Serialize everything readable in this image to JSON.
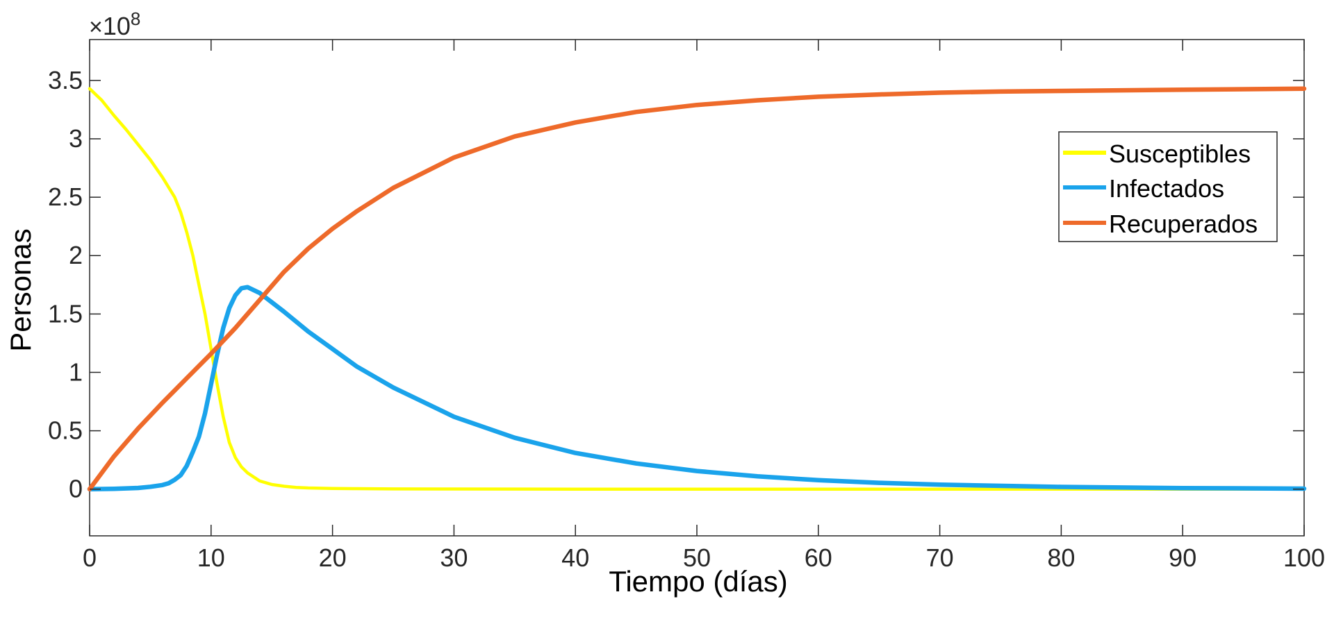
{
  "chart_data": {
    "type": "line",
    "xlabel": "Tiempo (días)",
    "ylabel": "Personas",
    "xlim": [
      0,
      100
    ],
    "ylim": [
      -0.4,
      3.85
    ],
    "y_multiplier_base": "10",
    "y_multiplier_exp": "8",
    "x_ticks": [
      0,
      10,
      20,
      30,
      40,
      50,
      60,
      70,
      80,
      90,
      100
    ],
    "x_tick_labels": [
      "0",
      "10",
      "20",
      "30",
      "40",
      "50",
      "60",
      "70",
      "80",
      "90",
      "100"
    ],
    "y_ticks": [
      0,
      0.5,
      1,
      1.5,
      2,
      2.5,
      3,
      3.5
    ],
    "y_tick_labels": [
      "0",
      "0.5",
      "1",
      "1.5",
      "2",
      "2.5",
      "3",
      "3.5"
    ],
    "grid": false,
    "legend_position": "top-right",
    "series": [
      {
        "name": "Susceptibles",
        "color": "#FFFF00",
        "x": [
          0,
          1,
          2,
          3,
          4,
          5,
          6,
          7,
          7.5,
          8,
          8.5,
          9,
          9.5,
          10,
          10.5,
          11,
          11.5,
          12,
          12.5,
          13,
          14,
          15,
          16,
          17,
          18,
          20,
          22,
          25,
          30,
          40,
          50,
          60,
          70,
          80,
          90,
          100
        ],
        "y": [
          3.43,
          3.33,
          3.2,
          3.08,
          2.95,
          2.82,
          2.67,
          2.5,
          2.37,
          2.2,
          2.0,
          1.75,
          1.5,
          1.2,
          0.9,
          0.62,
          0.4,
          0.27,
          0.19,
          0.14,
          0.07,
          0.04,
          0.025,
          0.015,
          0.01,
          0.006,
          0.004,
          0.002,
          0.001,
          0,
          0,
          0,
          0,
          0,
          0,
          0
        ]
      },
      {
        "name": "Infectados",
        "color": "#1AA3EB",
        "x": [
          0,
          2,
          4,
          5,
          6,
          6.5,
          7,
          7.5,
          8,
          8.5,
          9,
          9.5,
          10,
          10.5,
          11,
          11.5,
          12,
          12.5,
          13,
          14,
          15,
          16,
          18,
          20,
          22,
          25,
          30,
          35,
          40,
          45,
          50,
          55,
          60,
          65,
          70,
          80,
          90,
          100
        ],
        "y": [
          0,
          0.003,
          0.01,
          0.02,
          0.035,
          0.05,
          0.08,
          0.12,
          0.2,
          0.32,
          0.45,
          0.65,
          0.9,
          1.15,
          1.38,
          1.55,
          1.66,
          1.72,
          1.73,
          1.68,
          1.6,
          1.52,
          1.35,
          1.2,
          1.05,
          0.87,
          0.62,
          0.44,
          0.31,
          0.22,
          0.155,
          0.11,
          0.077,
          0.054,
          0.038,
          0.019,
          0.009,
          0.004
        ]
      },
      {
        "name": "Recuperados",
        "color": "#EE6A2A",
        "x": [
          0,
          2,
          4,
          6,
          8,
          10,
          12,
          14,
          16,
          18,
          20,
          22,
          25,
          30,
          35,
          40,
          45,
          50,
          55,
          60,
          65,
          70,
          75,
          80,
          90,
          100
        ],
        "y": [
          0,
          0.28,
          0.52,
          0.74,
          0.95,
          1.16,
          1.38,
          1.62,
          1.86,
          2.06,
          2.23,
          2.38,
          2.58,
          2.84,
          3.02,
          3.14,
          3.23,
          3.29,
          3.33,
          3.36,
          3.38,
          3.395,
          3.405,
          3.41,
          3.42,
          3.43
        ]
      }
    ]
  }
}
